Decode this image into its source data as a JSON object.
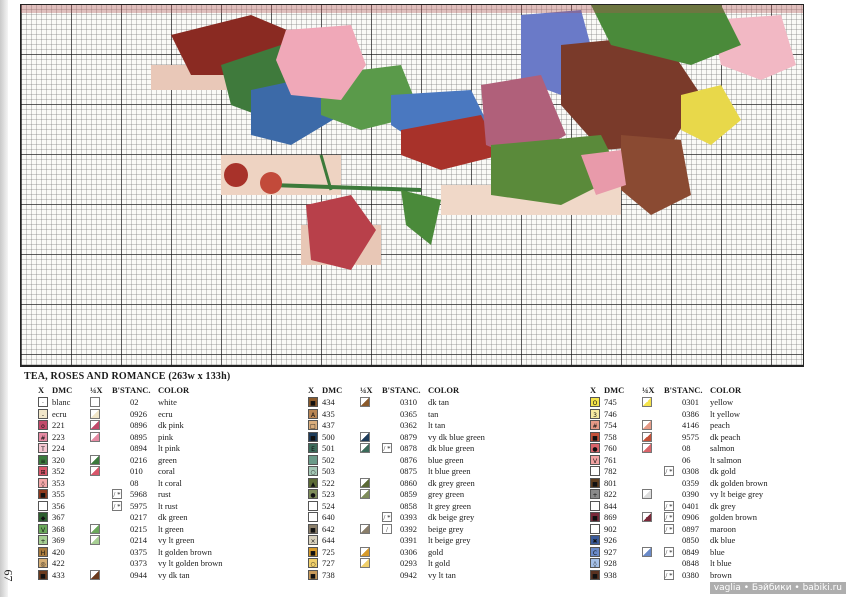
{
  "chart_title": "TEA, ROSES AND ROMANCE (263w x 133h)",
  "page_number": "67",
  "watermark": "vaglia • Бэйбики • babiki.ru",
  "headers": {
    "x": "X",
    "dmc": "DMC",
    "quarter": "¼X",
    "bst": "B'ST",
    "anc": "ANC.",
    "color": "COLOR"
  },
  "columns": [
    [
      {
        "sym": "·",
        "sym_color": "#ffffff",
        "dmc": "blanc",
        "quarter_color": "#ffffff",
        "bst": "",
        "anc": "02",
        "color": "white"
      },
      {
        "sym": "-",
        "sym_color": "#f1e6c9",
        "dmc": "ecru",
        "quarter_color": "#f1e6c9",
        "bst": "",
        "anc": "0926",
        "color": "ecru"
      },
      {
        "sym": "o",
        "sym_color": "#c24a6a",
        "dmc": "221",
        "quarter_color": "#c24a6a",
        "bst": "",
        "anc": "0896",
        "color": "dk pink"
      },
      {
        "sym": "#",
        "sym_color": "#e68aa3",
        "dmc": "223",
        "quarter_color": "#e68aa3",
        "bst": "",
        "anc": "0895",
        "color": "pink"
      },
      {
        "sym": "T",
        "sym_color": "#f5c8d2",
        "dmc": "224",
        "quarter_color": "",
        "bst": "",
        "anc": "0894",
        "color": "lt pink"
      },
      {
        "sym": "≡",
        "sym_color": "#3b7a3c",
        "dmc": "320",
        "quarter_color": "#3b7a3c",
        "bst": "",
        "anc": "0216",
        "color": "green"
      },
      {
        "sym": "⊞",
        "sym_color": "#d8566a",
        "dmc": "352",
        "quarter_color": "#d8566a",
        "bst": "",
        "anc": "010",
        "color": "coral"
      },
      {
        "sym": "◊",
        "sym_color": "#f3a7a8",
        "dmc": "353",
        "quarter_color": "",
        "bst": "",
        "anc": "08",
        "color": "lt coral"
      },
      {
        "sym": "■",
        "sym_color": "#8f3a1e",
        "dmc": "355",
        "quarter_color": "",
        "bst": "/ *",
        "anc": "5968",
        "color": "rust"
      },
      {
        "sym": "",
        "sym_color": "#ffffff",
        "dmc": "356",
        "quarter_color": "",
        "bst": "/ *",
        "anc": "5975",
        "color": "lt rust"
      },
      {
        "sym": "◆",
        "sym_color": "#2c5e2e",
        "dmc": "367",
        "quarter_color": "",
        "bst": "",
        "anc": "0217",
        "color": "dk green"
      },
      {
        "sym": "V",
        "sym_color": "#6aa85a",
        "dmc": "368",
        "quarter_color": "#6aa85a",
        "bst": "",
        "anc": "0215",
        "color": "lt green"
      },
      {
        "sym": "+",
        "sym_color": "#a7cf93",
        "dmc": "369",
        "quarter_color": "#a7cf93",
        "bst": "",
        "anc": "0214",
        "color": "vy lt green"
      },
      {
        "sym": "H",
        "sym_color": "#a87a3c",
        "dmc": "420",
        "quarter_color": "",
        "bst": "",
        "anc": "0375",
        "color": "lt golden brown"
      },
      {
        "sym": "◎",
        "sym_color": "#d4ad74",
        "dmc": "422",
        "quarter_color": "",
        "bst": "",
        "anc": "0373",
        "color": "vy lt golden brown"
      },
      {
        "sym": "■",
        "sym_color": "#6b3a1d",
        "dmc": "433",
        "quarter_color": "#6b3a1d",
        "bst": "",
        "anc": "0944",
        "color": "vy dk tan"
      }
    ],
    [
      {
        "sym": "■",
        "sym_color": "#8b5a2b",
        "dmc": "434",
        "quarter_color": "#8b5a2b",
        "bst": "",
        "anc": "0310",
        "color": "dk tan"
      },
      {
        "sym": "A",
        "sym_color": "#b98654",
        "dmc": "435",
        "quarter_color": "",
        "bst": "",
        "anc": "0365",
        "color": "tan"
      },
      {
        "sym": "□",
        "sym_color": "#d9ad7c",
        "dmc": "437",
        "quarter_color": "",
        "bst": "",
        "anc": "0362",
        "color": "lt tan"
      },
      {
        "sym": "■",
        "sym_color": "#1e3c5a",
        "dmc": "500",
        "quarter_color": "#1e3c5a",
        "bst": "",
        "anc": "0879",
        "color": "vy dk blue green"
      },
      {
        "sym": "E",
        "sym_color": "#3c6a5a",
        "dmc": "501",
        "quarter_color": "#3c6a5a",
        "bst": "/ *",
        "anc": "0878",
        "color": "dk blue green"
      },
      {
        "sym": "",
        "sym_color": "#6a9a88",
        "dmc": "502",
        "quarter_color": "",
        "bst": "",
        "anc": "0876",
        "color": "blue green"
      },
      {
        "sym": "○",
        "sym_color": "#a5c8b6",
        "dmc": "503",
        "quarter_color": "",
        "bst": "",
        "anc": "0875",
        "color": "lt blue green"
      },
      {
        "sym": "▲",
        "sym_color": "#5b6a36",
        "dmc": "522",
        "quarter_color": "#5b6a36",
        "bst": "",
        "anc": "0860",
        "color": "dk grey green"
      },
      {
        "sym": "●",
        "sym_color": "#7e8c5a",
        "dmc": "523",
        "quarter_color": "#7e8c5a",
        "bst": "",
        "anc": "0859",
        "color": "grey green"
      },
      {
        "sym": "",
        "sym_color": "#ffffff",
        "dmc": "524",
        "quarter_color": "",
        "bst": "",
        "anc": "0858",
        "color": "lt grey green"
      },
      {
        "sym": "",
        "sym_color": "#ffffff",
        "dmc": "640",
        "quarter_color": "",
        "bst": "/ *",
        "anc": "0393",
        "color": "dk beige grey"
      },
      {
        "sym": "■",
        "sym_color": "#8a7e6a",
        "dmc": "642",
        "quarter_color": "#8a7e6a",
        "bst": "/",
        "anc": "0392",
        "color": "beige grey"
      },
      {
        "sym": "×",
        "sym_color": "#d8d1bd",
        "dmc": "644",
        "quarter_color": "",
        "bst": "",
        "anc": "0391",
        "color": "lt beige grey"
      },
      {
        "sym": "■",
        "sym_color": "#d69a2a",
        "dmc": "725",
        "quarter_color": "#d69a2a",
        "bst": "",
        "anc": "0306",
        "color": "gold"
      },
      {
        "sym": "○",
        "sym_color": "#f0cf6a",
        "dmc": "727",
        "quarter_color": "#f0cf6a",
        "bst": "",
        "anc": "0293",
        "color": "lt gold"
      },
      {
        "sym": "■",
        "sym_color": "#c89a5a",
        "dmc": "738",
        "quarter_color": "",
        "bst": "",
        "anc": "0942",
        "color": "vy lt tan"
      }
    ],
    [
      {
        "sym": "O",
        "sym_color": "#f5e44a",
        "dmc": "745",
        "quarter_color": "#f5e44a",
        "bst": "",
        "anc": "0301",
        "color": "yellow"
      },
      {
        "sym": "3",
        "sym_color": "#f7eaa0",
        "dmc": "746",
        "quarter_color": "",
        "bst": "",
        "anc": "0386",
        "color": "lt yellow"
      },
      {
        "sym": "#",
        "sym_color": "#e59a86",
        "dmc": "754",
        "quarter_color": "#e59a86",
        "bst": "",
        "anc": "4146",
        "color": "peach"
      },
      {
        "sym": "■",
        "sym_color": "#c4523a",
        "dmc": "758",
        "quarter_color": "#c4523a",
        "bst": "",
        "anc": "9575",
        "color": "dk peach"
      },
      {
        "sym": "●",
        "sym_color": "#d9646a",
        "dmc": "760",
        "quarter_color": "#d9646a",
        "bst": "",
        "anc": "08",
        "color": "salmon"
      },
      {
        "sym": "V",
        "sym_color": "#f2a3a3",
        "dmc": "761",
        "quarter_color": "",
        "bst": "",
        "anc": "06",
        "color": "lt salmon"
      },
      {
        "sym": "",
        "sym_color": "#ffffff",
        "dmc": "782",
        "quarter_color": "",
        "bst": "/ *",
        "anc": "0308",
        "color": "dk gold"
      },
      {
        "sym": "■",
        "sym_color": "#5e3d1e",
        "dmc": "801",
        "quarter_color": "",
        "bst": "",
        "anc": "0359",
        "color": "dk golden brown"
      },
      {
        "sym": "+",
        "sym_color": "#8a8a8a",
        "dmc": "822",
        "quarter_color": "#dcdcdc",
        "bst": "",
        "anc": "0390",
        "color": "vy lt beige grey"
      },
      {
        "sym": "",
        "sym_color": "#ffffff",
        "dmc": "844",
        "quarter_color": "",
        "bst": "/ *",
        "anc": "0401",
        "color": "dk grey"
      },
      {
        "sym": "■",
        "sym_color": "#7a2a3a",
        "dmc": "869",
        "quarter_color": "#7a2a3a",
        "bst": "/ *",
        "anc": "0906",
        "color": "golden brown"
      },
      {
        "sym": "",
        "sym_color": "#ffffff",
        "dmc": "902",
        "quarter_color": "",
        "bst": "/ *",
        "anc": "0897",
        "color": "maroon"
      },
      {
        "sym": "✖",
        "sym_color": "#3a5a9a",
        "dmc": "926",
        "quarter_color": "",
        "bst": "",
        "anc": "0850",
        "color": "dk blue"
      },
      {
        "sym": "C",
        "sym_color": "#6a8ac8",
        "dmc": "927",
        "quarter_color": "#6a8ac8",
        "bst": "/ *",
        "anc": "0849",
        "color": "blue"
      },
      {
        "sym": "◊",
        "sym_color": "#a5c0e8",
        "dmc": "928",
        "quarter_color": "",
        "bst": "",
        "anc": "0848",
        "color": "lt blue"
      },
      {
        "sym": "■",
        "sym_color": "#5a3220",
        "dmc": "938",
        "quarter_color": "",
        "bst": "/ *",
        "anc": "0380",
        "color": "brown"
      }
    ]
  ]
}
